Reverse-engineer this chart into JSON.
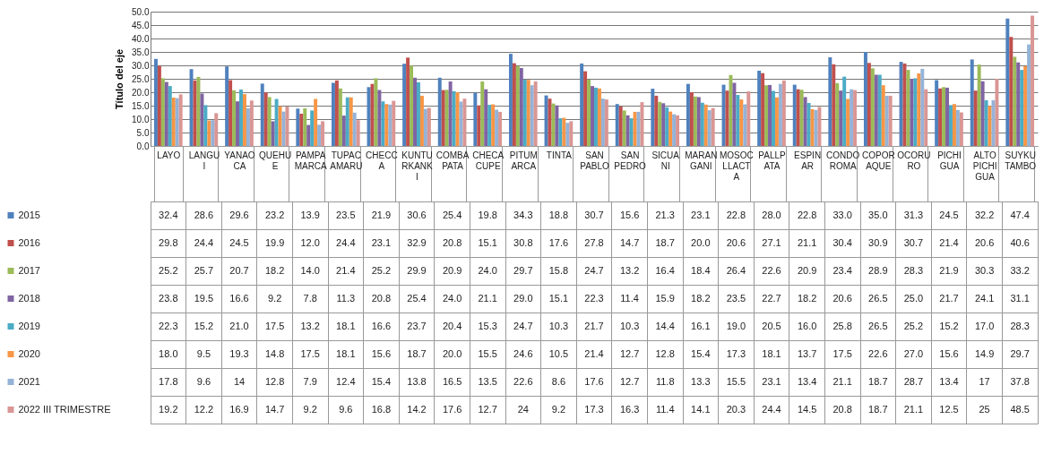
{
  "chart_data": {
    "type": "bar",
    "ylabel": "Título del eje",
    "categories": [
      "LAYO",
      "LANGUI",
      "YANAOCA",
      "QUEHUE",
      "PAMPAMARCA",
      "TUPAC AMARU",
      "CHECCA",
      "KUNTURKANKI",
      "COMBAPATA",
      "CHECACUPE",
      "PITUMARCA",
      "TINTA",
      "SAN PABLO",
      "SAN PEDRO",
      "SICUANI",
      "MARANGANI",
      "MOSOCLLACTA",
      "PALLPATA",
      "ESPINAR",
      "CONDOROMA",
      "COPORAQUE",
      "OCORURO",
      "PICHIGUA",
      "ALTO PICHIGUA",
      "SUYKUTAMBO"
    ],
    "series": [
      {
        "name": "2015",
        "color": "#4f81bd",
        "values": [
          32.4,
          28.6,
          29.6,
          23.2,
          13.9,
          23.5,
          21.9,
          30.6,
          25.4,
          19.8,
          34.3,
          18.8,
          30.7,
          15.6,
          21.3,
          23.1,
          22.8,
          28.0,
          22.8,
          33.0,
          35.0,
          31.3,
          24.5,
          32.2,
          47.4
        ],
        "value_labels": [
          "32.4",
          "28.6",
          "29.6",
          "23.2",
          "13.9",
          "23.5",
          "21.9",
          "30.6",
          "25.4",
          "19.8",
          "34.3",
          "18.8",
          "30.7",
          "15.6",
          "21.3",
          "23.1",
          "22.8",
          "28.0",
          "22.8",
          "33.0",
          "35.0",
          "31.3",
          "24.5",
          "32.2",
          "47.4"
        ]
      },
      {
        "name": "2016",
        "color": "#c0504d",
        "values": [
          29.8,
          24.4,
          24.5,
          19.9,
          12.0,
          24.4,
          23.1,
          32.9,
          20.8,
          15.1,
          30.8,
          17.6,
          27.8,
          14.7,
          18.7,
          20.0,
          20.6,
          27.1,
          21.1,
          30.4,
          30.9,
          30.7,
          21.4,
          20.6,
          40.6
        ],
        "value_labels": [
          "29.8",
          "24.4",
          "24.5",
          "19.9",
          "12.0",
          "24.4",
          "23.1",
          "32.9",
          "20.8",
          "15.1",
          "30.8",
          "17.6",
          "27.8",
          "14.7",
          "18.7",
          "20.0",
          "20.6",
          "27.1",
          "21.1",
          "30.4",
          "30.9",
          "30.7",
          "21.4",
          "20.6",
          "40.6"
        ]
      },
      {
        "name": "2017",
        "color": "#9bbb59",
        "values": [
          25.2,
          25.7,
          20.7,
          18.2,
          14.0,
          21.4,
          25.2,
          29.9,
          20.9,
          24.0,
          29.7,
          15.8,
          24.7,
          13.2,
          16.4,
          18.4,
          26.4,
          22.6,
          20.9,
          23.4,
          28.9,
          28.3,
          21.9,
          30.3,
          33.2
        ],
        "value_labels": [
          "25.2",
          "25.7",
          "20.7",
          "18.2",
          "14.0",
          "21.4",
          "25.2",
          "29.9",
          "20.9",
          "24.0",
          "29.7",
          "15.8",
          "24.7",
          "13.2",
          "16.4",
          "18.4",
          "26.4",
          "22.6",
          "20.9",
          "23.4",
          "28.9",
          "28.3",
          "21.9",
          "30.3",
          "33.2"
        ]
      },
      {
        "name": "2018",
        "color": "#8064a2",
        "values": [
          23.8,
          19.5,
          16.6,
          9.2,
          7.8,
          11.3,
          20.8,
          25.4,
          24.0,
          21.1,
          29.0,
          15.1,
          22.3,
          11.4,
          15.9,
          18.2,
          23.5,
          22.7,
          18.2,
          20.6,
          26.5,
          25.0,
          21.7,
          24.1,
          31.1
        ],
        "value_labels": [
          "23.8",
          "19.5",
          "16.6",
          "9.2",
          "7.8",
          "11.3",
          "20.8",
          "25.4",
          "24.0",
          "21.1",
          "29.0",
          "15.1",
          "22.3",
          "11.4",
          "15.9",
          "18.2",
          "23.5",
          "22.7",
          "18.2",
          "20.6",
          "26.5",
          "25.0",
          "21.7",
          "24.1",
          "31.1"
        ]
      },
      {
        "name": "2019",
        "color": "#4bacc6",
        "values": [
          22.3,
          15.2,
          21.0,
          17.5,
          13.2,
          18.1,
          16.6,
          23.7,
          20.4,
          15.3,
          24.7,
          10.3,
          21.7,
          10.3,
          14.4,
          16.1,
          19.0,
          20.5,
          16.0,
          25.8,
          26.5,
          25.2,
          15.2,
          17.0,
          28.3
        ],
        "value_labels": [
          "22.3",
          "15.2",
          "21.0",
          "17.5",
          "13.2",
          "18.1",
          "16.6",
          "23.7",
          "20.4",
          "15.3",
          "24.7",
          "10.3",
          "21.7",
          "10.3",
          "14.4",
          "16.1",
          "19.0",
          "20.5",
          "16.0",
          "25.8",
          "26.5",
          "25.2",
          "15.2",
          "17.0",
          "28.3"
        ]
      },
      {
        "name": "2020",
        "color": "#f79646",
        "values": [
          18.0,
          9.5,
          19.3,
          14.8,
          17.5,
          18.1,
          15.6,
          18.7,
          20.0,
          15.5,
          24.6,
          10.5,
          21.4,
          12.7,
          12.8,
          15.4,
          17.3,
          18.1,
          13.7,
          17.5,
          22.6,
          27.0,
          15.6,
          14.9,
          29.7
        ],
        "value_labels": [
          "18.0",
          "9.5",
          "19.3",
          "14.8",
          "17.5",
          "18.1",
          "15.6",
          "18.7",
          "20.0",
          "15.5",
          "24.6",
          "10.5",
          "21.4",
          "12.7",
          "12.8",
          "15.4",
          "17.3",
          "18.1",
          "13.7",
          "17.5",
          "22.6",
          "27.0",
          "15.6",
          "14.9",
          "29.7"
        ]
      },
      {
        "name": "2021",
        "color": "#95b3d7",
        "values": [
          17.8,
          9.6,
          14,
          12.8,
          7.9,
          12.4,
          15.4,
          13.8,
          16.5,
          13.5,
          22.6,
          8.6,
          17.6,
          12.7,
          11.8,
          13.3,
          15.5,
          23.1,
          13.4,
          21.1,
          18.7,
          28.7,
          13.4,
          17,
          37.8
        ],
        "value_labels": [
          "17.8",
          "9.6",
          "14",
          "12.8",
          "7.9",
          "12.4",
          "15.4",
          "13.8",
          "16.5",
          "13.5",
          "22.6",
          "8.6",
          "17.6",
          "12.7",
          "11.8",
          "13.3",
          "15.5",
          "23.1",
          "13.4",
          "21.1",
          "18.7",
          "28.7",
          "13.4",
          "17",
          "37.8"
        ]
      },
      {
        "name": "2022 III TRIMESTRE",
        "color": "#d99694",
        "values": [
          19.2,
          12.2,
          16.9,
          14.7,
          9.2,
          9.6,
          16.8,
          14.2,
          17.6,
          12.7,
          24,
          9.2,
          17.3,
          16.3,
          11.4,
          14.1,
          20.3,
          24.4,
          14.5,
          20.8,
          18.7,
          21.1,
          12.5,
          25,
          48.5
        ],
        "value_labels": [
          "19.2",
          "12.2",
          "16.9",
          "14.7",
          "9.2",
          "9.6",
          "16.8",
          "14.2",
          "17.6",
          "12.7",
          "24",
          "9.2",
          "17.3",
          "16.3",
          "11.4",
          "14.1",
          "20.3",
          "24.4",
          "14.5",
          "20.8",
          "18.7",
          "21.1",
          "12.5",
          "25",
          "48.5"
        ]
      }
    ],
    "ylim": [
      0,
      50
    ],
    "yticks": [
      {
        "value": 0,
        "label": "0.0"
      },
      {
        "value": 5,
        "label": "5.0"
      },
      {
        "value": 10,
        "label": "10.0"
      },
      {
        "value": 15,
        "label": "15.0"
      },
      {
        "value": 20,
        "label": "20.0"
      },
      {
        "value": 25,
        "label": "25.0"
      },
      {
        "value": 30,
        "label": "30.0"
      },
      {
        "value": 35,
        "label": "35.0"
      },
      {
        "value": 40,
        "label": "40.0"
      },
      {
        "value": 45,
        "label": "45.0"
      },
      {
        "value": 50,
        "label": "50.0"
      }
    ],
    "grid": true,
    "legend": "bottom"
  }
}
